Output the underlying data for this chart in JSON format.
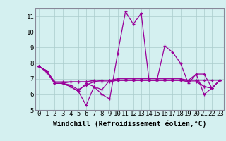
{
  "title": "",
  "xlabel": "Windchill (Refroidissement éolien,°C)",
  "background_color": "#d4f0f0",
  "line_color": "#990099",
  "grid_color": "#aacccc",
  "spine_color": "#888899",
  "x_values": [
    0,
    1,
    2,
    3,
    4,
    5,
    6,
    7,
    8,
    9,
    10,
    11,
    12,
    13,
    14,
    15,
    16,
    17,
    18,
    19,
    20,
    21,
    22,
    23
  ],
  "series": [
    [
      7.8,
      7.5,
      6.7,
      6.7,
      6.5,
      6.2,
      5.3,
      6.5,
      6.0,
      5.7,
      8.6,
      11.3,
      10.5,
      11.2,
      6.9,
      6.9,
      9.1,
      8.7,
      8.0,
      6.7,
      7.3,
      6.0,
      6.4,
      6.9
    ],
    [
      7.8,
      7.5,
      6.7,
      6.7,
      6.8,
      6.8,
      6.8,
      6.9,
      6.9,
      6.9,
      7.0,
      7.0,
      7.0,
      7.0,
      7.0,
      7.0,
      7.0,
      7.0,
      7.0,
      6.9,
      7.3,
      7.3,
      6.4,
      6.9
    ],
    [
      7.8,
      7.4,
      6.7,
      6.7,
      6.6,
      6.3,
      6.6,
      6.8,
      6.9,
      6.9,
      6.9,
      6.9,
      6.9,
      6.9,
      6.9,
      6.9,
      6.9,
      6.9,
      6.9,
      6.8,
      6.8,
      6.5,
      6.4,
      6.9
    ],
    [
      7.8,
      7.5,
      6.8,
      6.8,
      6.8,
      6.8,
      6.8,
      6.8,
      6.8,
      6.8,
      6.9,
      6.9,
      6.9,
      6.9,
      6.9,
      6.9,
      6.9,
      6.9,
      6.9,
      6.9,
      6.9,
      6.5,
      6.4,
      6.9
    ],
    [
      7.8,
      7.5,
      6.7,
      6.7,
      6.5,
      6.2,
      6.7,
      6.5,
      6.3,
      6.9,
      6.9,
      6.9,
      6.9,
      6.9,
      6.9,
      6.9,
      6.9,
      6.9,
      6.9,
      6.9,
      6.9,
      6.9,
      6.9,
      6.9
    ]
  ],
  "ylim": [
    5,
    11.5
  ],
  "xlim": [
    -0.5,
    23.5
  ],
  "yticks": [
    5,
    6,
    7,
    8,
    9,
    10,
    11
  ],
  "xticks": [
    0,
    1,
    2,
    3,
    4,
    5,
    6,
    7,
    8,
    9,
    10,
    11,
    12,
    13,
    14,
    15,
    16,
    17,
    18,
    19,
    20,
    21,
    22,
    23
  ],
  "xtick_labels": [
    "0",
    "1",
    "2",
    "3",
    "4",
    "5",
    "6",
    "7",
    "8",
    "9",
    "10",
    "11",
    "12",
    "13",
    "14",
    "15",
    "16",
    "17",
    "18",
    "19",
    "20",
    "21",
    "22",
    "23"
  ],
  "fontsize_tick": 6.5,
  "fontsize_label": 7,
  "linewidth": 0.9,
  "markersize": 2.5,
  "marker": "+"
}
